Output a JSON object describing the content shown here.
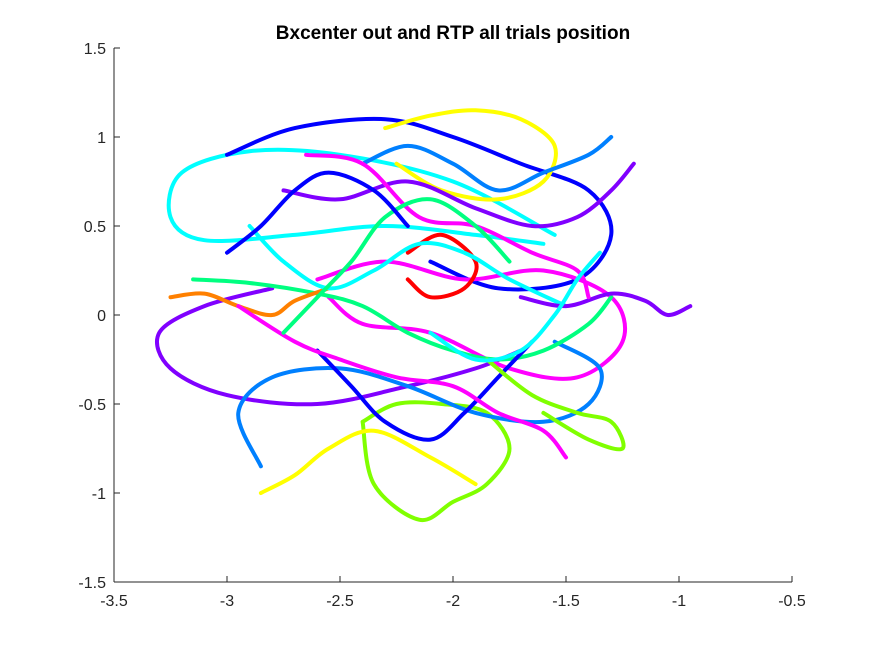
{
  "chart_data": {
    "type": "line",
    "title": "Bxcenter out and RTP all trials position",
    "xlabel": "",
    "ylabel": "",
    "xlim": [
      -3.5,
      -0.5
    ],
    "ylim": [
      -1.5,
      1.5
    ],
    "xticks": [
      -3.5,
      -3,
      -2.5,
      -2,
      -1.5,
      -1,
      -0.5
    ],
    "yticks": [
      -1.5,
      -1,
      -0.5,
      0,
      0.5,
      1,
      1.5
    ],
    "xtick_labels": [
      "-3.5",
      "-3",
      "-2.5",
      "-2",
      "-1.5",
      "-1",
      "-0.5"
    ],
    "ytick_labels": [
      "-1.5",
      "-1",
      "-0.5",
      "0",
      "0.5",
      "1",
      "1.5"
    ],
    "grid": false,
    "legend": "none",
    "colors": [
      "#ff0000",
      "#ff8000",
      "#ffff00",
      "#80ff00",
      "#00ff80",
      "#00ffff",
      "#0080ff",
      "#0000ff",
      "#8000ff",
      "#ff00ff"
    ],
    "series": [
      {
        "color": "#00ffff",
        "x": [
          -1.55,
          -2.0,
          -2.5,
          -2.9,
          -3.2,
          -3.25,
          -3.1,
          -2.7,
          -2.3,
          -1.9,
          -1.6
        ],
        "y": [
          0.45,
          0.75,
          0.9,
          0.92,
          0.8,
          0.55,
          0.42,
          0.45,
          0.5,
          0.45,
          0.4
        ]
      },
      {
        "color": "#8000ff",
        "x": [
          -2.8,
          -3.1,
          -3.3,
          -3.25,
          -3.0,
          -2.6,
          -2.2,
          -1.9,
          -1.7
        ],
        "y": [
          0.15,
          0.05,
          -0.1,
          -0.3,
          -0.45,
          -0.5,
          -0.4,
          -0.3,
          -0.2
        ]
      },
      {
        "color": "#0000ff",
        "x": [
          -3.0,
          -2.7,
          -2.3,
          -2.0,
          -1.7,
          -1.4,
          -1.3,
          -1.45,
          -1.8,
          -2.1
        ],
        "y": [
          0.9,
          1.05,
          1.1,
          1.0,
          0.85,
          0.7,
          0.45,
          0.2,
          0.15,
          0.3
        ]
      },
      {
        "color": "#ff00ff",
        "x": [
          -2.6,
          -2.3,
          -1.95,
          -1.6,
          -1.3,
          -1.25,
          -1.45,
          -1.75,
          -2.1,
          -2.4,
          -2.55
        ],
        "y": [
          0.2,
          0.3,
          0.2,
          0.25,
          0.1,
          -0.15,
          -0.35,
          -0.3,
          -0.1,
          -0.05,
          0.1
        ]
      },
      {
        "color": "#80ff00",
        "x": [
          -2.4,
          -2.35,
          -2.15,
          -2.0,
          -1.85,
          -1.75,
          -1.85,
          -2.05,
          -2.25,
          -2.4
        ],
        "y": [
          -0.6,
          -0.95,
          -1.15,
          -1.05,
          -0.95,
          -0.75,
          -0.55,
          -0.5,
          -0.5,
          -0.6
        ]
      },
      {
        "color": "#0080ff",
        "x": [
          -2.85,
          -2.95,
          -2.8,
          -2.5,
          -2.2,
          -1.9,
          -1.6,
          -1.4,
          -1.35,
          -1.55
        ],
        "y": [
          -0.85,
          -0.55,
          -0.35,
          -0.3,
          -0.4,
          -0.55,
          -0.6,
          -0.5,
          -0.3,
          -0.15
        ]
      },
      {
        "color": "#ffff00",
        "x": [
          -2.3,
          -2.1,
          -1.9,
          -1.7,
          -1.55,
          -1.6,
          -1.8,
          -2.05,
          -2.25
        ],
        "y": [
          1.05,
          1.12,
          1.15,
          1.1,
          0.95,
          0.75,
          0.65,
          0.7,
          0.85
        ]
      },
      {
        "color": "#00ff80",
        "x": [
          -3.15,
          -2.9,
          -2.6,
          -2.4,
          -2.2,
          -2.0,
          -1.8,
          -1.6,
          -1.4,
          -1.3
        ],
        "y": [
          0.2,
          0.18,
          0.12,
          0.05,
          -0.1,
          -0.2,
          -0.25,
          -0.2,
          -0.05,
          0.1
        ]
      },
      {
        "color": "#ff8000",
        "x": [
          -3.25,
          -3.1,
          -2.95,
          -2.8,
          -2.7,
          -2.55
        ],
        "y": [
          0.1,
          0.12,
          0.05,
          0.0,
          0.08,
          0.15
        ]
      },
      {
        "color": "#ff0000",
        "x": [
          -2.2,
          -2.05,
          -1.9,
          -1.95,
          -2.1,
          -2.2
        ],
        "y": [
          0.35,
          0.45,
          0.3,
          0.15,
          0.1,
          0.2
        ]
      },
      {
        "color": "#8000ff",
        "x": [
          -2.75,
          -2.5,
          -2.2,
          -1.9,
          -1.65,
          -1.45,
          -1.3,
          -1.2
        ],
        "y": [
          0.7,
          0.65,
          0.75,
          0.6,
          0.5,
          0.55,
          0.7,
          0.85
        ]
      },
      {
        "color": "#0000ff",
        "x": [
          -2.6,
          -2.45,
          -2.3,
          -2.1,
          -1.95,
          -1.8,
          -1.65
        ],
        "y": [
          -0.2,
          -0.4,
          -0.6,
          -0.7,
          -0.55,
          -0.35,
          -0.15
        ]
      },
      {
        "color": "#00ffff",
        "x": [
          -2.9,
          -2.75,
          -2.55,
          -2.35,
          -2.15,
          -1.95,
          -1.75,
          -1.5
        ],
        "y": [
          0.5,
          0.3,
          0.15,
          0.25,
          0.4,
          0.35,
          0.2,
          0.05
        ]
      },
      {
        "color": "#ff00ff",
        "x": [
          -2.95,
          -2.7,
          -2.5,
          -2.25,
          -2.0,
          -1.8,
          -1.6,
          -1.5
        ],
        "y": [
          0.05,
          -0.15,
          -0.25,
          -0.35,
          -0.4,
          -0.55,
          -0.65,
          -0.8
        ]
      },
      {
        "color": "#80ff00",
        "x": [
          -1.85,
          -1.65,
          -1.45,
          -1.3,
          -1.25,
          -1.4,
          -1.6
        ],
        "y": [
          -0.25,
          -0.45,
          -0.55,
          -0.6,
          -0.75,
          -0.7,
          -0.55
        ]
      },
      {
        "color": "#0080ff",
        "x": [
          -2.4,
          -2.2,
          -2.0,
          -1.8,
          -1.6,
          -1.4,
          -1.3
        ],
        "y": [
          0.85,
          0.95,
          0.85,
          0.7,
          0.8,
          0.9,
          1.0
        ]
      },
      {
        "color": "#8000ff",
        "x": [
          -1.7,
          -1.5,
          -1.3,
          -1.15,
          -1.05,
          -0.95
        ],
        "y": [
          0.1,
          0.05,
          0.12,
          0.08,
          0.0,
          0.05
        ]
      },
      {
        "color": "#ffff00",
        "x": [
          -2.85,
          -2.7,
          -2.55,
          -2.35,
          -2.1,
          -1.9
        ],
        "y": [
          -1.0,
          -0.9,
          -0.75,
          -0.65,
          -0.8,
          -0.95
        ]
      },
      {
        "color": "#ff00ff",
        "x": [
          -2.65,
          -2.4,
          -2.15,
          -1.9,
          -1.65,
          -1.45,
          -1.4
        ],
        "y": [
          0.9,
          0.85,
          0.55,
          0.5,
          0.35,
          0.25,
          0.1
        ]
      },
      {
        "color": "#00ff80",
        "x": [
          -2.75,
          -2.6,
          -2.45,
          -2.3,
          -2.1,
          -1.9,
          -1.75
        ],
        "y": [
          -0.1,
          0.1,
          0.3,
          0.55,
          0.65,
          0.5,
          0.3
        ]
      },
      {
        "color": "#0000ff",
        "x": [
          -3.0,
          -2.85,
          -2.7,
          -2.55,
          -2.35,
          -2.2
        ],
        "y": [
          0.35,
          0.5,
          0.7,
          0.8,
          0.7,
          0.5
        ]
      },
      {
        "color": "#00ffff",
        "x": [
          -2.1,
          -1.9,
          -1.7,
          -1.55,
          -1.45,
          -1.35
        ],
        "y": [
          -0.1,
          -0.25,
          -0.2,
          0.0,
          0.2,
          0.35
        ]
      }
    ]
  }
}
